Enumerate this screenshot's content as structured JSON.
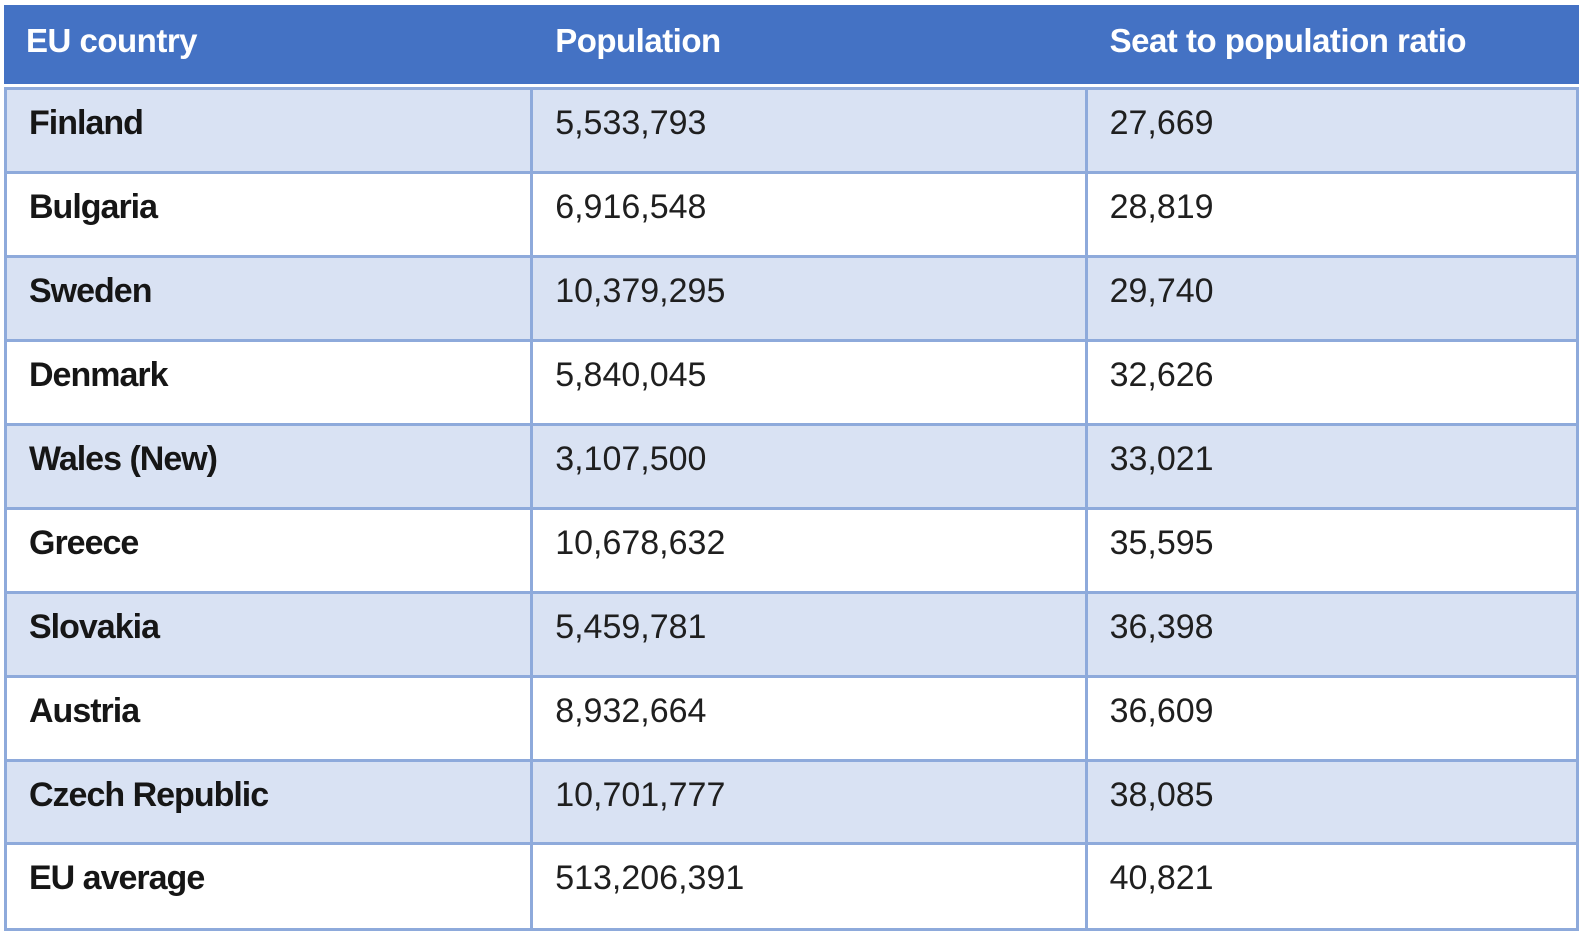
{
  "table": {
    "columns": [
      {
        "key": "country",
        "label": "EU country"
      },
      {
        "key": "population",
        "label": "Population"
      },
      {
        "key": "ratio",
        "label": "Seat to population ratio"
      }
    ],
    "rows": [
      {
        "country": "Finland",
        "population": "5,533,793",
        "ratio": "27,669"
      },
      {
        "country": "Bulgaria",
        "population": "6,916,548",
        "ratio": "28,819"
      },
      {
        "country": "Sweden",
        "population": "10,379,295",
        "ratio": "29,740"
      },
      {
        "country": "Denmark",
        "population": "5,840,045",
        "ratio": "32,626"
      },
      {
        "country": "Wales (New)",
        "population": "3,107,500",
        "ratio": "33,021"
      },
      {
        "country": "Greece",
        "population": "10,678,632",
        "ratio": "35,595"
      },
      {
        "country": "Slovakia",
        "population": "5,459,781",
        "ratio": "36,398"
      },
      {
        "country": "Austria",
        "population": "8,932,664",
        "ratio": "36,609"
      },
      {
        "country": "Czech Republic",
        "population": "10,701,777",
        "ratio": "38,085"
      },
      {
        "country": "EU average",
        "population": "513,206,391",
        "ratio": "40,821"
      }
    ]
  },
  "colors": {
    "header_bg": "#4472C4",
    "header_text": "#FFFFFF",
    "band_bg": "#D9E2F3",
    "row_bg": "#FFFFFF",
    "border": "#8EAADB",
    "body_text": "#1F1F1F"
  }
}
